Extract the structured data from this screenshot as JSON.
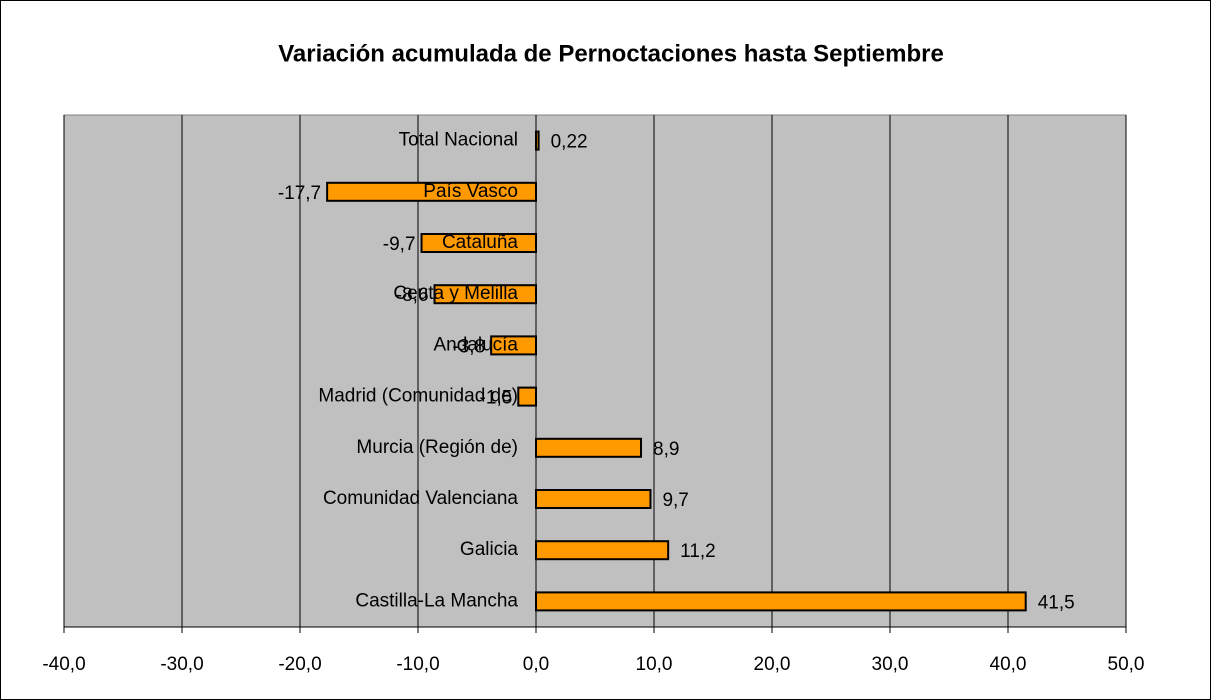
{
  "chart_data": {
    "type": "hbar",
    "title": "Variación acumulada de Pernoctaciones hasta Septiembre",
    "categories": [
      "Total Nacional",
      "País Vasco",
      "Cataluña",
      "Ceuta y Melilla",
      "Andalucía",
      "Madrid (Comunidad de)",
      "Murcia (Región de)",
      "Comunidad Valenciana",
      "Galicia",
      "Castilla-La Mancha"
    ],
    "values": [
      0.22,
      -17.7,
      -9.7,
      -8.6,
      -3.8,
      -1.5,
      8.9,
      9.7,
      11.2,
      41.5
    ],
    "value_labels": [
      "0,22",
      "-17,7",
      "-9,7",
      "-8,6",
      "-3,8",
      "-1,5",
      "8,9",
      "9,7",
      "11,2",
      "41,5"
    ],
    "color": "#ff9900",
    "xlim": [
      -40,
      50
    ],
    "xticks": [
      {
        "value": -40,
        "label": "-40,0"
      },
      {
        "value": -30,
        "label": "-30,0"
      },
      {
        "value": -20,
        "label": "-20,0"
      },
      {
        "value": -10,
        "label": "-10,0"
      },
      {
        "value": 0,
        "label": "0,0"
      },
      {
        "value": 10,
        "label": "10,0"
      },
      {
        "value": 20,
        "label": "20,0"
      },
      {
        "value": 30,
        "label": "30,0"
      },
      {
        "value": 40,
        "label": "40,0"
      },
      {
        "value": 50,
        "label": "50,0"
      }
    ],
    "grid": true
  }
}
